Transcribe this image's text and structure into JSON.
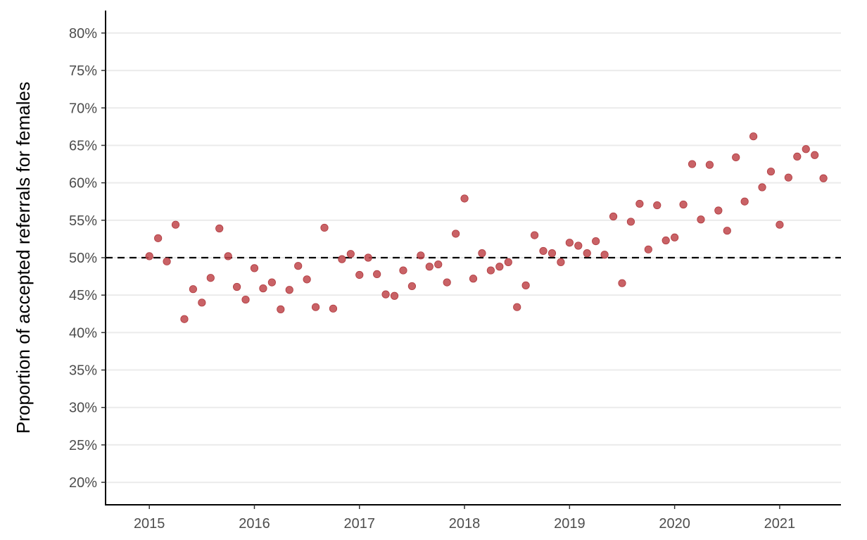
{
  "chart_data": {
    "type": "scatter",
    "title": "",
    "xlabel": "",
    "ylabel": "Proportion of accepted referrals for females",
    "x_tick_labels": [
      "2015",
      "2016",
      "2017",
      "2018",
      "2019",
      "2020",
      "2021"
    ],
    "y_tick_labels": [
      "20%",
      "25%",
      "30%",
      "35%",
      "40%",
      "45%",
      "50%",
      "55%",
      "60%",
      "65%",
      "70%",
      "75%",
      "80%"
    ],
    "y_ticks": [
      20,
      25,
      30,
      35,
      40,
      45,
      50,
      55,
      60,
      65,
      70,
      75,
      80
    ],
    "x_ticks": [
      "2015-01",
      "2016-01",
      "2017-01",
      "2018-01",
      "2019-01",
      "2020-01",
      "2021-01"
    ],
    "xlim": [
      "2014-08",
      "2021-08"
    ],
    "ylim": [
      17,
      83
    ],
    "reference_line": {
      "y": 50,
      "style": "dashed",
      "color": "#000000"
    },
    "grid": "horizontal",
    "point_color": "#c0464b",
    "points": [
      {
        "x": "2015-01",
        "y": 50.2
      },
      {
        "x": "2015-02",
        "y": 52.6
      },
      {
        "x": "2015-03",
        "y": 49.5
      },
      {
        "x": "2015-04",
        "y": 54.4
      },
      {
        "x": "2015-05",
        "y": 41.8
      },
      {
        "x": "2015-06",
        "y": 45.8
      },
      {
        "x": "2015-07",
        "y": 44.0
      },
      {
        "x": "2015-08",
        "y": 47.3
      },
      {
        "x": "2015-09",
        "y": 53.9
      },
      {
        "x": "2015-10",
        "y": 50.2
      },
      {
        "x": "2015-11",
        "y": 46.1
      },
      {
        "x": "2015-12",
        "y": 44.4
      },
      {
        "x": "2016-01",
        "y": 48.6
      },
      {
        "x": "2016-02",
        "y": 45.9
      },
      {
        "x": "2016-03",
        "y": 46.7
      },
      {
        "x": "2016-04",
        "y": 43.1
      },
      {
        "x": "2016-05",
        "y": 45.7
      },
      {
        "x": "2016-06",
        "y": 48.9
      },
      {
        "x": "2016-07",
        "y": 47.1
      },
      {
        "x": "2016-08",
        "y": 43.4
      },
      {
        "x": "2016-09",
        "y": 54.0
      },
      {
        "x": "2016-10",
        "y": 43.2
      },
      {
        "x": "2016-11",
        "y": 49.8
      },
      {
        "x": "2016-12",
        "y": 50.5
      },
      {
        "x": "2017-01",
        "y": 47.7
      },
      {
        "x": "2017-02",
        "y": 50.0
      },
      {
        "x": "2017-03",
        "y": 47.8
      },
      {
        "x": "2017-04",
        "y": 45.1
      },
      {
        "x": "2017-05",
        "y": 44.9
      },
      {
        "x": "2017-06",
        "y": 48.3
      },
      {
        "x": "2017-07",
        "y": 46.2
      },
      {
        "x": "2017-08",
        "y": 50.3
      },
      {
        "x": "2017-09",
        "y": 48.8
      },
      {
        "x": "2017-10",
        "y": 49.1
      },
      {
        "x": "2017-11",
        "y": 46.7
      },
      {
        "x": "2017-12",
        "y": 53.2
      },
      {
        "x": "2018-01",
        "y": 57.9
      },
      {
        "x": "2018-02",
        "y": 47.2
      },
      {
        "x": "2018-03",
        "y": 50.6
      },
      {
        "x": "2018-04",
        "y": 48.3
      },
      {
        "x": "2018-05",
        "y": 48.8
      },
      {
        "x": "2018-06",
        "y": 49.4
      },
      {
        "x": "2018-07",
        "y": 43.4
      },
      {
        "x": "2018-08",
        "y": 46.3
      },
      {
        "x": "2018-09",
        "y": 53.0
      },
      {
        "x": "2018-10",
        "y": 50.9
      },
      {
        "x": "2018-11",
        "y": 50.6
      },
      {
        "x": "2018-12",
        "y": 49.4
      },
      {
        "x": "2019-01",
        "y": 52.0
      },
      {
        "x": "2019-02",
        "y": 51.6
      },
      {
        "x": "2019-03",
        "y": 50.6
      },
      {
        "x": "2019-04",
        "y": 52.2
      },
      {
        "x": "2019-05",
        "y": 50.4
      },
      {
        "x": "2019-06",
        "y": 55.5
      },
      {
        "x": "2019-07",
        "y": 46.6
      },
      {
        "x": "2019-08",
        "y": 54.8
      },
      {
        "x": "2019-09",
        "y": 57.2
      },
      {
        "x": "2019-10",
        "y": 51.1
      },
      {
        "x": "2019-11",
        "y": 57.0
      },
      {
        "x": "2019-12",
        "y": 52.3
      },
      {
        "x": "2020-01",
        "y": 52.7
      },
      {
        "x": "2020-02",
        "y": 57.1
      },
      {
        "x": "2020-03",
        "y": 62.5
      },
      {
        "x": "2020-04",
        "y": 55.1
      },
      {
        "x": "2020-05",
        "y": 62.4
      },
      {
        "x": "2020-06",
        "y": 56.3
      },
      {
        "x": "2020-07",
        "y": 53.6
      },
      {
        "x": "2020-08",
        "y": 63.4
      },
      {
        "x": "2020-09",
        "y": 57.5
      },
      {
        "x": "2020-10",
        "y": 66.2
      },
      {
        "x": "2020-11",
        "y": 59.4
      },
      {
        "x": "2020-12",
        "y": 61.5
      },
      {
        "x": "2021-01",
        "y": 54.4
      },
      {
        "x": "2021-02",
        "y": 60.7
      },
      {
        "x": "2021-03",
        "y": 63.5
      },
      {
        "x": "2021-04",
        "y": 64.5
      },
      {
        "x": "2021-05",
        "y": 63.7
      },
      {
        "x": "2021-06",
        "y": 60.6
      }
    ]
  }
}
